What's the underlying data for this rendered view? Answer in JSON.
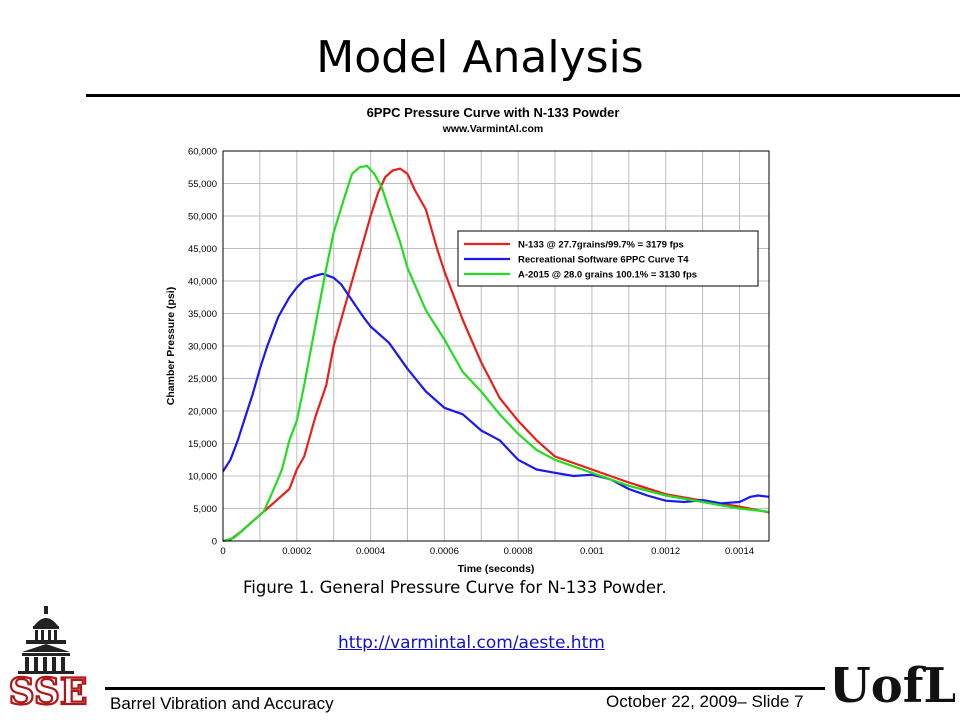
{
  "slide": {
    "title": "Model Analysis",
    "caption": "Figure 1.  General Pressure Curve for N-133 Powder.",
    "link": "http://varmintal.com/aeste.htm",
    "footer_left": "Barrel Vibration and Accuracy",
    "footer_right": "October 22, 2009– Slide 7",
    "logo_left": "SSE",
    "logo_right": "UofL"
  },
  "chart_data": {
    "type": "line",
    "title": "6PPC Pressure Curve with N-133 Powder",
    "subtitle": "www.VarmintAl.com",
    "xlabel": "Time (seconds)",
    "ylabel": "Chamber Pressure (psi)",
    "xlim": [
      0,
      0.00148
    ],
    "ylim": [
      0,
      60000
    ],
    "x_ticks": [
      0,
      0.0002,
      0.0004,
      0.0006,
      0.0008,
      0.001,
      0.0012,
      0.0014
    ],
    "x_tick_labels": [
      "0",
      "0.0002",
      "0.0004",
      "0.0006",
      "0.0008",
      "0.001",
      "0.0012",
      "0.0014"
    ],
    "y_ticks": [
      0,
      5000,
      10000,
      15000,
      20000,
      25000,
      30000,
      35000,
      40000,
      45000,
      50000,
      55000,
      60000
    ],
    "y_tick_labels": [
      "0",
      "5,000",
      "10,000",
      "15,000",
      "20,000",
      "25,000",
      "30,000",
      "35,000",
      "40,000",
      "45,000",
      "50,000",
      "55,000",
      "60,000"
    ],
    "grid": true,
    "legend_position": "upper-right",
    "series": [
      {
        "name": "N-133 @ 27.7grains/99.7% = 3179 fps",
        "color": "#e8201c",
        "points": [
          [
            0,
            0
          ],
          [
            2e-05,
            200
          ],
          [
            5e-05,
            1500
          ],
          [
            8e-05,
            3000
          ],
          [
            0.0001,
            4000
          ],
          [
            0.00012,
            5000
          ],
          [
            0.00015,
            6500
          ],
          [
            0.00018,
            8000
          ],
          [
            0.0002,
            11000
          ],
          [
            0.00022,
            13000
          ],
          [
            0.00025,
            19000
          ],
          [
            0.00028,
            24000
          ],
          [
            0.0003,
            30000
          ],
          [
            0.00033,
            36000
          ],
          [
            0.00036,
            42000
          ],
          [
            0.00038,
            46000
          ],
          [
            0.0004,
            50000
          ],
          [
            0.00042,
            53500
          ],
          [
            0.00044,
            56000
          ],
          [
            0.00046,
            57000
          ],
          [
            0.00048,
            57300
          ],
          [
            0.0005,
            56500
          ],
          [
            0.00052,
            54000
          ],
          [
            0.00055,
            51000
          ],
          [
            0.00058,
            45000
          ],
          [
            0.0006,
            41500
          ],
          [
            0.00065,
            34000
          ],
          [
            0.0007,
            27500
          ],
          [
            0.00075,
            22000
          ],
          [
            0.0008,
            18500
          ],
          [
            0.00085,
            15500
          ],
          [
            0.0009,
            13000
          ],
          [
            0.001,
            11000
          ],
          [
            0.0011,
            9000
          ],
          [
            0.0012,
            7200
          ],
          [
            0.0013,
            6200
          ],
          [
            0.0014,
            5300
          ],
          [
            0.00148,
            4400
          ]
        ]
      },
      {
        "name": "Recreational Software 6PPC Curve T4",
        "color": "#1a1aee",
        "points": [
          [
            0,
            10700
          ],
          [
            2e-05,
            12500
          ],
          [
            4e-05,
            15500
          ],
          [
            6e-05,
            19000
          ],
          [
            8e-05,
            22500
          ],
          [
            0.0001,
            26500
          ],
          [
            0.00012,
            30000
          ],
          [
            0.00015,
            34500
          ],
          [
            0.00018,
            37500
          ],
          [
            0.0002,
            39000
          ],
          [
            0.00022,
            40200
          ],
          [
            0.00025,
            40800
          ],
          [
            0.00027,
            41100
          ],
          [
            0.0003,
            40500
          ],
          [
            0.00032,
            39500
          ],
          [
            0.00035,
            37000
          ],
          [
            0.00038,
            34500
          ],
          [
            0.0004,
            33000
          ],
          [
            0.00045,
            30500
          ],
          [
            0.0005,
            26500
          ],
          [
            0.00055,
            23000
          ],
          [
            0.0006,
            20500
          ],
          [
            0.00065,
            19500
          ],
          [
            0.0007,
            17000
          ],
          [
            0.00075,
            15500
          ],
          [
            0.0008,
            12500
          ],
          [
            0.00085,
            11000
          ],
          [
            0.0009,
            10500
          ],
          [
            0.00095,
            10000
          ],
          [
            0.001,
            10200
          ],
          [
            0.00105,
            9500
          ],
          [
            0.0011,
            8000
          ],
          [
            0.00115,
            7000
          ],
          [
            0.0012,
            6200
          ],
          [
            0.00125,
            6000
          ],
          [
            0.0013,
            6300
          ],
          [
            0.00135,
            5800
          ],
          [
            0.0014,
            6000
          ],
          [
            0.00143,
            6800
          ],
          [
            0.00145,
            7000
          ],
          [
            0.00148,
            6800
          ]
        ]
      },
      {
        "name": "A-2015  @ 28.0 grains 100.1% = 3130 fps",
        "color": "#22dd22",
        "points": [
          [
            0,
            0
          ],
          [
            3e-05,
            500
          ],
          [
            6e-05,
            2000
          ],
          [
            9e-05,
            3500
          ],
          [
            0.00011,
            4500
          ],
          [
            0.00013,
            7000
          ],
          [
            0.00016,
            11000
          ],
          [
            0.00018,
            15500
          ],
          [
            0.0002,
            18500
          ],
          [
            0.00022,
            24000
          ],
          [
            0.00025,
            33000
          ],
          [
            0.00028,
            42000
          ],
          [
            0.0003,
            47500
          ],
          [
            0.00033,
            53000
          ],
          [
            0.00035,
            56500
          ],
          [
            0.00037,
            57500
          ],
          [
            0.00039,
            57700
          ],
          [
            0.00041,
            56500
          ],
          [
            0.00043,
            54500
          ],
          [
            0.00045,
            51000
          ],
          [
            0.00048,
            46000
          ],
          [
            0.0005,
            42000
          ],
          [
            0.00055,
            35500
          ],
          [
            0.0006,
            31000
          ],
          [
            0.00065,
            26000
          ],
          [
            0.0007,
            23000
          ],
          [
            0.00075,
            19500
          ],
          [
            0.0008,
            16500
          ],
          [
            0.00085,
            14000
          ],
          [
            0.0009,
            12500
          ],
          [
            0.001,
            10500
          ],
          [
            0.0011,
            8500
          ],
          [
            0.0012,
            7000
          ],
          [
            0.0013,
            6000
          ],
          [
            0.0014,
            5000
          ],
          [
            0.00148,
            4500
          ]
        ]
      }
    ]
  }
}
